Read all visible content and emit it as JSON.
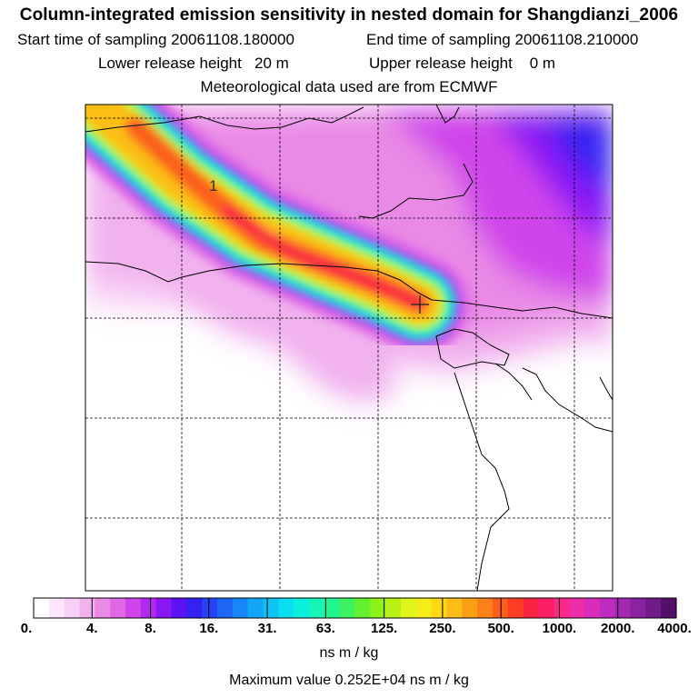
{
  "header": {
    "title": "Column-integrated emission sensitivity in nested domain for Shangdianzi_2006",
    "start_label": "Start time of sampling",
    "start_value": "20061108.180000",
    "end_label": "End time of sampling",
    "end_value": "20061108.210000",
    "lower_label": "Lower release height",
    "lower_value": "20 m",
    "upper_label": "Upper release height",
    "upper_value": "0 m",
    "met_line": "Meteorological data used are from ECMWF"
  },
  "map": {
    "contour_label": "1",
    "receptor_marker": "Shangdianzi receptor"
  },
  "colorbar": {
    "tick_labels": [
      "0.",
      "4.",
      "8.",
      "16.",
      "31.",
      "63.",
      "125.",
      "250.",
      "500.",
      "1000.",
      "2000.",
      "4000."
    ],
    "colors": [
      "#ffffff",
      "#fde6fb",
      "#f8d0f5",
      "#f1b1ee",
      "#e98ae6",
      "#e068e7",
      "#cf45ea",
      "#b22aef",
      "#8a16f4",
      "#5c12f5",
      "#3521f3",
      "#2543f3",
      "#1e67f5",
      "#1787f7",
      "#12a6f7",
      "#0dc3f4",
      "#08def0",
      "#0af0dc",
      "#16f4b8",
      "#22f490",
      "#3ef25f",
      "#64f031",
      "#8ef11a",
      "#b9f115",
      "#def41a",
      "#f6ec18",
      "#fbd716",
      "#fbbd16",
      "#fb9f17",
      "#fb8019",
      "#fb601b",
      "#fb3e22",
      "#fb2344",
      "#fb1f66",
      "#fb2789",
      "#f02da8",
      "#d82dbb",
      "#be2bc0",
      "#a328b2",
      "#8a23a0",
      "#6f1b88",
      "#540f6b"
    ],
    "units": "ns m / kg"
  },
  "max_value_text": "Maximum value  0.252E+04 ns m / kg"
}
